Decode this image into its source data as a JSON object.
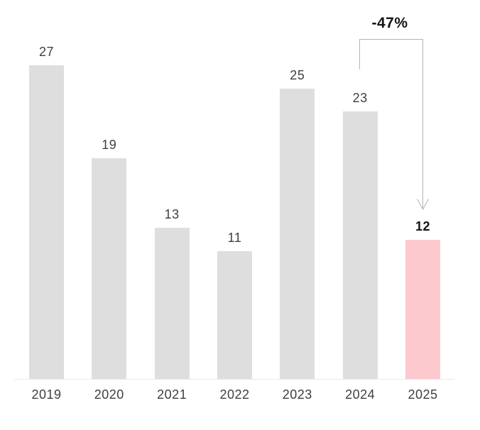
{
  "chart_data": {
    "type": "bar",
    "categories": [
      "2019",
      "2020",
      "2021",
      "2022",
      "2023",
      "2024",
      "2025"
    ],
    "values": [
      27,
      19,
      13,
      11,
      25,
      23,
      12
    ],
    "title": "",
    "xlabel": "",
    "ylabel": "",
    "ylim": [
      0,
      30
    ],
    "grid": false,
    "legend": false,
    "data_labels_shown": true,
    "highlight_category": "2025",
    "annotation": {
      "label": "-47%",
      "from_category": "2024",
      "to_category": "2025",
      "shape": "bracket-down-arrow"
    },
    "colors": {
      "bar_default": "#dedede",
      "bar_highlight": "#fcc9ce",
      "label": "#3f3f3f",
      "label_highlight": "#141414",
      "axis_line": "#e8e8e8",
      "arrow": "#b3b3b3",
      "background": "#ffffff"
    }
  }
}
